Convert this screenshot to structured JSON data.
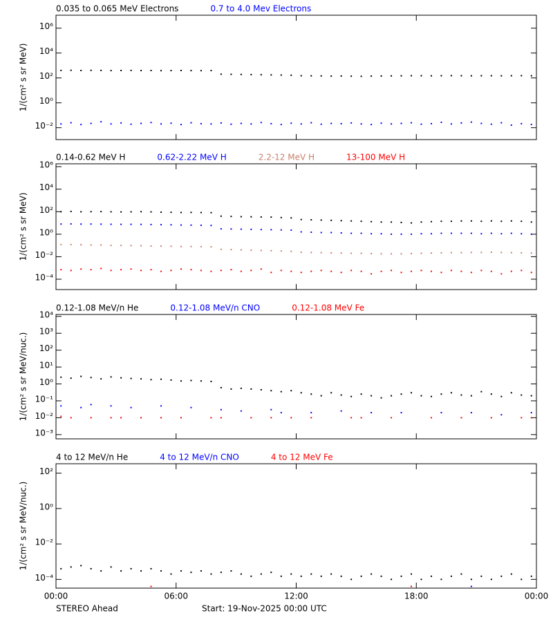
{
  "chart_data": [
    {
      "type": "scatter",
      "log": true,
      "grid": false,
      "ylabel": "1/(cm² s sr MeV)",
      "xlim": [
        0,
        24
      ],
      "xticks": [
        0,
        6,
        12,
        18,
        24
      ],
      "ylim": [
        0.0011,
        11000000
      ],
      "yticks": [
        {
          "value": 0.01,
          "label": "10⁻²"
        },
        {
          "value": 1,
          "label": "10⁰"
        },
        {
          "value": 100,
          "label": "10²"
        },
        {
          "value": 10000,
          "label": "10⁴"
        },
        {
          "value": 1000000,
          "label": "10⁶"
        }
      ],
      "x": [
        0.25,
        0.75,
        1.25,
        1.75,
        2.25,
        2.75,
        3.25,
        3.75,
        4.25,
        4.75,
        5.25,
        5.75,
        6.25,
        6.75,
        7.25,
        7.75,
        8.25,
        8.75,
        9.25,
        9.75,
        10.25,
        10.75,
        11.25,
        11.75,
        12.25,
        12.75,
        13.25,
        13.75,
        14.25,
        14.75,
        15.25,
        15.75,
        16.25,
        16.75,
        17.25,
        17.75,
        18.25,
        18.75,
        19.25,
        19.75,
        20.25,
        20.75,
        21.25,
        21.75,
        22.25,
        22.75,
        23.25,
        23.75
      ],
      "series": [
        {
          "name": "0.035 to 0.065 MeV Electrons",
          "color": "#000000",
          "values": [
            400,
            410,
            395,
            405,
            400,
            390,
            395,
            400,
            390,
            395,
            385,
            390,
            395,
            390,
            385,
            390,
            200,
            195,
            190,
            185,
            180,
            175,
            170,
            165,
            150,
            148,
            145,
            140,
            142,
            138,
            135,
            140,
            142,
            145,
            148,
            150,
            150,
            148,
            150,
            152,
            150,
            148,
            150,
            150,
            148,
            150,
            152,
            150
          ]
        },
        {
          "name": "0.7 to 4.0 Mev Electrons",
          "color": "#0000ff",
          "values": [
            0.02,
            0.025,
            0.018,
            0.022,
            0.03,
            0.02,
            0.024,
            0.019,
            0.022,
            0.026,
            0.02,
            0.023,
            0.018,
            0.025,
            0.021,
            0.02,
            0.024,
            0.019,
            0.022,
            0.02,
            0.026,
            0.021,
            0.018,
            0.023,
            0.02,
            0.025,
            0.019,
            0.022,
            0.021,
            0.024,
            0.02,
            0.018,
            0.023,
            0.02,
            0.022,
            0.025,
            0.019,
            0.021,
            0.027,
            0.02,
            0.024,
            0.028,
            0.022,
            0.019,
            0.025,
            0.016,
            0.021,
            0.018
          ]
        }
      ]
    },
    {
      "type": "scatter",
      "log": true,
      "grid": false,
      "ylabel": "1/(cm² s sr MeV)",
      "xlim": [
        0,
        24
      ],
      "xticks": [
        0,
        6,
        12,
        18,
        24
      ],
      "ylim": [
        1.2e-05,
        1800000
      ],
      "yticks": [
        {
          "value": 0.0001,
          "label": "10⁻⁴"
        },
        {
          "value": 0.01,
          "label": "10⁻²"
        },
        {
          "value": 1,
          "label": "10⁰"
        },
        {
          "value": 100,
          "label": "10²"
        },
        {
          "value": 10000,
          "label": "10⁴"
        },
        {
          "value": 1000000,
          "label": "10⁶"
        }
      ],
      "x": [
        0.25,
        0.75,
        1.25,
        1.75,
        2.25,
        2.75,
        3.25,
        3.75,
        4.25,
        4.75,
        5.25,
        5.75,
        6.25,
        6.75,
        7.25,
        7.75,
        8.25,
        8.75,
        9.25,
        9.75,
        10.25,
        10.75,
        11.25,
        11.75,
        12.25,
        12.75,
        13.25,
        13.75,
        14.25,
        14.75,
        15.25,
        15.75,
        16.25,
        16.75,
        17.25,
        17.75,
        18.25,
        18.75,
        19.25,
        19.75,
        20.25,
        20.75,
        21.25,
        21.75,
        22.25,
        22.75,
        23.25,
        23.75
      ],
      "series": [
        {
          "name": "0.14-0.62 MeV H",
          "color": "#000000",
          "values": [
            100,
            105,
            98,
            100,
            102,
            98,
            95,
            97,
            100,
            96,
            90,
            88,
            85,
            86,
            84,
            82,
            40,
            38,
            36,
            35,
            34,
            33,
            30,
            28,
            20,
            19,
            18,
            17,
            16,
            15,
            14,
            13,
            12,
            12,
            11,
            10,
            12,
            13,
            14,
            14,
            15,
            15,
            14,
            15,
            14,
            15,
            14,
            12
          ]
        },
        {
          "name": "0.62-2.22 MeV H",
          "color": "#0000ff",
          "values": [
            8,
            8.2,
            7.9,
            8,
            7.8,
            7.6,
            7.5,
            7.5,
            7.4,
            7.2,
            7,
            6.8,
            6.5,
            6.4,
            6.2,
            6,
            3,
            2.9,
            2.8,
            2.7,
            2.6,
            2.5,
            2.4,
            2.3,
            1.6,
            1.5,
            1.4,
            1.4,
            1.3,
            1.2,
            1.2,
            1.1,
            1.1,
            1.0,
            1.0,
            1.0,
            1.1,
            1.1,
            1.2,
            1.2,
            1.2,
            1.2,
            1.1,
            1.2,
            1.1,
            1.2,
            1.1,
            1.0
          ]
        },
        {
          "name": "2.2-12 MeV H",
          "color": "#c8806a",
          "values": [
            0.12,
            0.12,
            0.115,
            0.11,
            0.11,
            0.1,
            0.1,
            0.098,
            0.095,
            0.09,
            0.088,
            0.085,
            0.08,
            0.08,
            0.078,
            0.075,
            0.045,
            0.043,
            0.04,
            0.038,
            0.036,
            0.034,
            0.032,
            0.03,
            0.025,
            0.024,
            0.023,
            0.022,
            0.021,
            0.02,
            0.02,
            0.019,
            0.018,
            0.018,
            0.018,
            0.019,
            0.02,
            0.021,
            0.022,
            0.023,
            0.023,
            0.024,
            0.024,
            0.025,
            0.024,
            0.023,
            0.022,
            0.021
          ]
        },
        {
          "name": "13-100 MeV H",
          "color": "#ff0000",
          "values": [
            0.0007,
            0.0006,
            0.0008,
            0.0007,
            0.0009,
            0.0006,
            0.0007,
            0.0008,
            0.0006,
            0.0007,
            0.0005,
            0.0006,
            0.0008,
            0.0007,
            0.0006,
            0.0005,
            0.0006,
            0.0007,
            0.0005,
            0.0006,
            0.0008,
            0.0004,
            0.0006,
            0.0005,
            0.0004,
            0.0005,
            0.0006,
            0.0005,
            0.0004,
            0.0006,
            0.0005,
            0.0003,
            0.0005,
            0.0006,
            0.0004,
            0.0005,
            0.0006,
            0.0005,
            0.0004,
            0.0006,
            0.0005,
            0.0004,
            0.0006,
            0.0005,
            0.0003,
            0.0005,
            0.0006,
            0.0004
          ]
        }
      ]
    },
    {
      "type": "scatter",
      "log": true,
      "grid": false,
      "ylabel": "1/(cm² s sr MeV/nuc.)",
      "xlim": [
        0,
        24
      ],
      "xticks": [
        0,
        6,
        12,
        18,
        24
      ],
      "ylim": [
        0.00056,
        13000
      ],
      "yticks": [
        {
          "value": 0.001,
          "label": "10⁻³"
        },
        {
          "value": 0.01,
          "label": "10⁻²"
        },
        {
          "value": 0.1,
          "label": "10⁻¹"
        },
        {
          "value": 1,
          "label": "10⁰"
        },
        {
          "value": 10,
          "label": "10¹"
        },
        {
          "value": 100,
          "label": "10²"
        },
        {
          "value": 1000,
          "label": "10³"
        },
        {
          "value": 10000,
          "label": "10⁴"
        }
      ],
      "x": [
        0.25,
        0.75,
        1.25,
        1.75,
        2.25,
        2.75,
        3.25,
        3.75,
        4.25,
        4.75,
        5.25,
        5.75,
        6.25,
        6.75,
        7.25,
        7.75,
        8.25,
        8.75,
        9.25,
        9.75,
        10.25,
        10.75,
        11.25,
        11.75,
        12.25,
        12.75,
        13.25,
        13.75,
        14.25,
        14.75,
        15.25,
        15.75,
        16.25,
        16.75,
        17.25,
        17.75,
        18.25,
        18.75,
        19.25,
        19.75,
        20.25,
        20.75,
        21.25,
        21.75,
        22.25,
        22.75,
        23.25,
        23.75
      ],
      "series": [
        {
          "name": "0.12-1.08 MeV/n He",
          "color": "#000000",
          "values": [
            2.5,
            2.2,
            2.8,
            2.4,
            2,
            2.6,
            2.3,
            2.1,
            2,
            1.8,
            1.9,
            1.7,
            1.5,
            1.6,
            1.5,
            1.4,
            0.6,
            0.5,
            0.55,
            0.5,
            0.45,
            0.4,
            0.35,
            0.4,
            0.3,
            0.25,
            0.2,
            0.3,
            0.22,
            0.18,
            0.25,
            0.2,
            0.15,
            0.2,
            0.25,
            0.3,
            0.2,
            0.18,
            0.25,
            0.3,
            0.22,
            0.2,
            0.35,
            0.25,
            0.18,
            0.3,
            0.22,
            0.2
          ]
        },
        {
          "name": "0.12-1.08 MeV/n CNO",
          "color": "#0000ff",
          "values": [
            0.05,
            null,
            0.04,
            0.06,
            null,
            0.05,
            null,
            0.04,
            null,
            null,
            0.05,
            null,
            null,
            0.04,
            null,
            null,
            0.03,
            null,
            0.025,
            null,
            null,
            0.03,
            0.02,
            null,
            null,
            0.02,
            null,
            null,
            0.025,
            null,
            null,
            0.02,
            null,
            null,
            0.02,
            null,
            null,
            null,
            0.02,
            null,
            null,
            0.02,
            null,
            null,
            0.015,
            null,
            null,
            0.02
          ]
        },
        {
          "name": "0.12-1.08 MeV Fe",
          "color": "#ff0000",
          "values": [
            0.012,
            0.01,
            null,
            0.01,
            null,
            0.01,
            0.01,
            null,
            0.01,
            null,
            0.01,
            null,
            0.01,
            null,
            null,
            0.01,
            0.01,
            null,
            null,
            0.01,
            null,
            0.01,
            null,
            0.01,
            null,
            0.01,
            null,
            null,
            null,
            0.01,
            0.01,
            null,
            null,
            0.01,
            null,
            null,
            null,
            0.01,
            null,
            null,
            0.01,
            null,
            null,
            0.01,
            null,
            null,
            0.01,
            0.01
          ]
        }
      ]
    },
    {
      "type": "scatter",
      "log": true,
      "grid": false,
      "ylabel": "1/(cm² s sr MeV/nuc.)",
      "xlim": [
        0,
        24
      ],
      "xticks": [
        {
          "value": 0,
          "label": "00:00"
        },
        {
          "value": 6,
          "label": "06:00"
        },
        {
          "value": 12,
          "label": "12:00"
        },
        {
          "value": 18,
          "label": "18:00"
        },
        {
          "value": 24,
          "label": "00:00"
        }
      ],
      "ylim": [
        3.2e-05,
        340
      ],
      "yticks": [
        {
          "value": 0.0001,
          "label": "10⁻⁴"
        },
        {
          "value": 0.01,
          "label": "10⁻²"
        },
        {
          "value": 1,
          "label": "10⁰"
        },
        {
          "value": 100,
          "label": "10²"
        }
      ],
      "x": [
        0.25,
        0.75,
        1.25,
        1.75,
        2.25,
        2.75,
        3.25,
        3.75,
        4.25,
        4.75,
        5.25,
        5.75,
        6.25,
        6.75,
        7.25,
        7.75,
        8.25,
        8.75,
        9.25,
        9.75,
        10.25,
        10.75,
        11.25,
        11.75,
        12.25,
        12.75,
        13.25,
        13.75,
        14.25,
        14.75,
        15.25,
        15.75,
        16.25,
        16.75,
        17.25,
        17.75,
        18.25,
        18.75,
        19.25,
        19.75,
        20.25,
        20.75,
        21.25,
        21.75,
        22.25,
        22.75,
        23.25,
        23.75
      ],
      "series": [
        {
          "name": "4 to 12 MeV/n He",
          "color": "#000000",
          "values": [
            0.0004,
            0.0005,
            0.0006,
            0.0004,
            0.0003,
            0.0005,
            0.0003,
            0.0004,
            0.0003,
            0.0004,
            0.0003,
            0.0002,
            0.0003,
            0.00025,
            0.0003,
            0.0002,
            0.00025,
            0.0003,
            0.0002,
            0.00015,
            0.0002,
            0.00025,
            0.00015,
            0.0002,
            0.00015,
            0.0002,
            0.00015,
            0.0002,
            0.00015,
            0.0001,
            0.00015,
            0.0002,
            0.00015,
            0.0001,
            0.00015,
            0.0002,
            0.0001,
            0.00015,
            0.0001,
            0.00015,
            0.0002,
            0.0001,
            0.00015,
            0.0001,
            0.00015,
            0.0002,
            0.0001,
            0.00015
          ]
        },
        {
          "name": "4 to 12 MeV/n CNO",
          "color": "#0000ff",
          "values": [
            null,
            null,
            null,
            null,
            null,
            null,
            null,
            null,
            null,
            null,
            null,
            null,
            null,
            null,
            null,
            null,
            null,
            null,
            null,
            null,
            null,
            null,
            null,
            null,
            null,
            null,
            null,
            null,
            null,
            null,
            null,
            null,
            null,
            null,
            null,
            null,
            null,
            null,
            null,
            null,
            null,
            4e-05,
            null,
            null,
            null,
            null,
            null,
            null
          ]
        },
        {
          "name": "4 to 12 MeV Fe",
          "color": "#ff0000",
          "values": [
            null,
            null,
            null,
            null,
            null,
            null,
            null,
            null,
            null,
            4e-05,
            null,
            null,
            null,
            null,
            null,
            null,
            null,
            null,
            null,
            null,
            null,
            null,
            null,
            null,
            null,
            null,
            null,
            null,
            null,
            null,
            null,
            null,
            null,
            null,
            null,
            4e-05,
            null,
            null,
            null,
            null,
            null,
            null,
            null,
            null,
            null,
            null,
            null,
            null
          ]
        }
      ]
    }
  ],
  "footer": {
    "spacecraft": "STEREO Ahead",
    "start": "Start: 19-Nov-2025 00:00 UTC"
  }
}
